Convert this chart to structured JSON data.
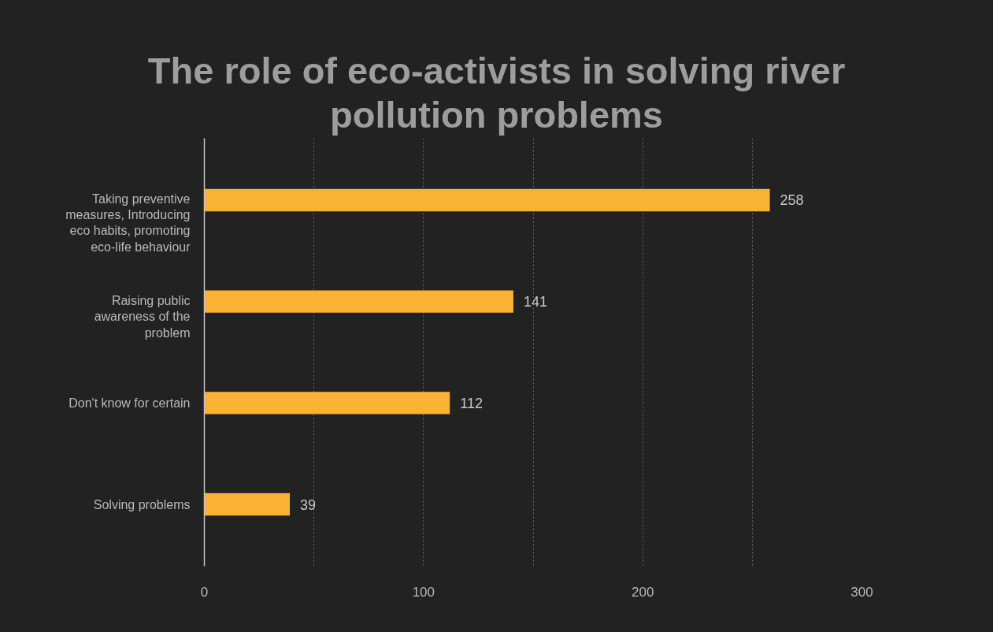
{
  "chart_data": {
    "type": "bar",
    "orientation": "horizontal",
    "title": "The role of eco-activists in solving river pollution problems",
    "categories": [
      "Taking preventive measures, Introducing eco habits, promoting eco-life behaviour",
      "Raising public awareness of the problem",
      "Don't know for certain",
      "Solving problems"
    ],
    "values": [
      258,
      141,
      112,
      39
    ],
    "color": "#f9b234",
    "xlim": [
      0,
      300
    ],
    "xticks": [
      0,
      {
        "value": 50,
        "label": null
      },
      100,
      {
        "value": 150,
        "label": null
      },
      200,
      {
        "value": 250,
        "label": null
      },
      300
    ],
    "grid": "x",
    "data_labels": true
  }
}
